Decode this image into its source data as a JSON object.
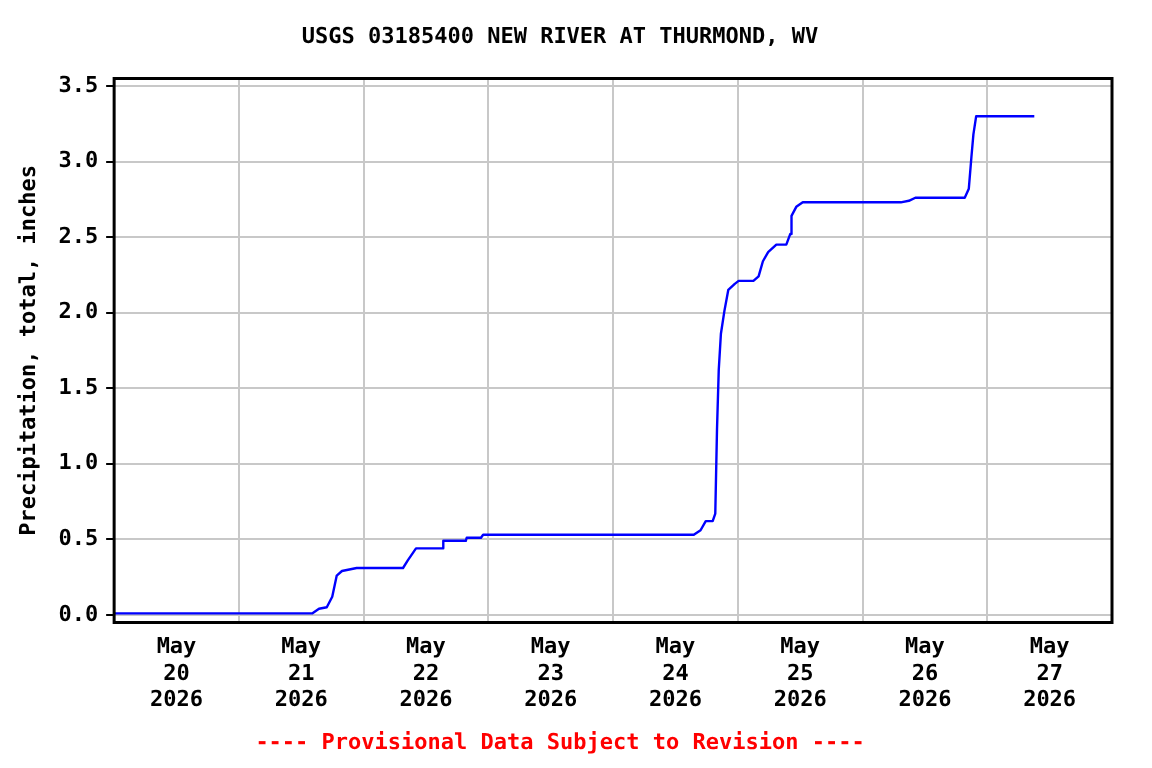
{
  "chart_data": {
    "type": "line",
    "title": "USGS 03185400 NEW RIVER AT THURMOND, WV",
    "ylabel": "Precipitation, total, inches",
    "annotations": [
      "---- Provisional Data Subject to Revision ----"
    ],
    "x": [
      "2026-05-20T00:00",
      "2026-05-21T14:10",
      "2026-05-21T15:25",
      "2026-05-21T16:55",
      "2026-05-21T17:58",
      "2026-05-21T18:50",
      "2026-05-21T19:50",
      "2026-05-21T22:40",
      "2026-05-22T07:35",
      "2026-05-22T08:30",
      "2026-05-22T10:05",
      "2026-05-22T15:13",
      "2026-05-22T15:20",
      "2026-05-22T19:40",
      "2026-05-22T19:50",
      "2026-05-22T22:35",
      "2026-05-22T23:00",
      "2026-05-24T15:32",
      "2026-05-24T16:50",
      "2026-05-24T17:50",
      "2026-05-24T19:10",
      "2026-05-24T19:40",
      "2026-05-24T20:00",
      "2026-05-24T20:20",
      "2026-05-24T20:45",
      "2026-05-24T21:25",
      "2026-05-24T22:10",
      "2026-05-24T23:25",
      "2026-05-25T00:10",
      "2026-05-25T03:00",
      "2026-05-25T04:00",
      "2026-05-25T04:50",
      "2026-05-25T05:50",
      "2026-05-25T07:25",
      "2026-05-25T09:20",
      "2026-05-25T10:05",
      "2026-05-25T10:20",
      "2026-05-25T11:15",
      "2026-05-25T12:30",
      "2026-05-26T07:22",
      "2026-05-26T08:55",
      "2026-05-26T10:10",
      "2026-05-26T19:40",
      "2026-05-26T20:27",
      "2026-05-26T20:57",
      "2026-05-26T21:20",
      "2026-05-26T21:52",
      "2026-05-27T09:03"
    ],
    "series": [
      {
        "color": "#0000ff",
        "values": [
          0.01,
          0.01,
          0.04,
          0.05,
          0.12,
          0.26,
          0.29,
          0.31,
          0.31,
          0.36,
          0.44,
          0.44,
          0.49,
          0.49,
          0.51,
          0.51,
          0.53,
          0.53,
          0.56,
          0.62,
          0.62,
          0.67,
          1.23,
          1.62,
          1.86,
          2.01,
          2.15,
          2.19,
          2.21,
          2.21,
          2.24,
          2.34,
          2.4,
          2.45,
          2.45,
          2.52,
          2.64,
          2.7,
          2.73,
          2.73,
          2.74,
          2.76,
          2.76,
          2.82,
          3.03,
          3.18,
          3.3,
          3.3
        ]
      }
    ],
    "xlim": [
      "2026-05-20T00:00",
      "2026-05-28T00:00"
    ],
    "xticks": [
      {
        "value": "2026-05-20T12:00",
        "label": "May\n20\n2026"
      },
      {
        "value": "2026-05-21T00:00",
        "label": null
      },
      {
        "value": "2026-05-21T12:00",
        "label": "May\n21\n2026"
      },
      {
        "value": "2026-05-22T00:00",
        "label": null
      },
      {
        "value": "2026-05-22T12:00",
        "label": "May\n22\n2026"
      },
      {
        "value": "2026-05-23T00:00",
        "label": null
      },
      {
        "value": "2026-05-23T12:00",
        "label": "May\n23\n2026"
      },
      {
        "value": "2026-05-24T00:00",
        "label": null
      },
      {
        "value": "2026-05-24T12:00",
        "label": "May\n24\n2026"
      },
      {
        "value": "2026-05-25T00:00",
        "label": null
      },
      {
        "value": "2026-05-25T12:00",
        "label": "May\n25\n2026"
      },
      {
        "value": "2026-05-26T00:00",
        "label": null
      },
      {
        "value": "2026-05-26T12:00",
        "label": "May\n26\n2026"
      },
      {
        "value": "2026-05-27T00:00",
        "label": null
      },
      {
        "value": "2026-05-27T12:00",
        "label": "May\n27\n2026"
      }
    ],
    "ylim": [
      -0.05,
      3.55
    ],
    "yticks": [
      {
        "value": 0,
        "label": "0.0"
      },
      {
        "value": 0.5,
        "label": "0.5"
      },
      {
        "value": 1,
        "label": "1.0"
      },
      {
        "value": 1.5,
        "label": "1.5"
      },
      {
        "value": 2,
        "label": "2.0"
      },
      {
        "value": 2.5,
        "label": "2.5"
      },
      {
        "value": 3,
        "label": "3.0"
      },
      {
        "value": 3.5,
        "label": "3.5"
      }
    ],
    "grid": true,
    "legend": false,
    "marker": "none",
    "line_style": "solid"
  }
}
